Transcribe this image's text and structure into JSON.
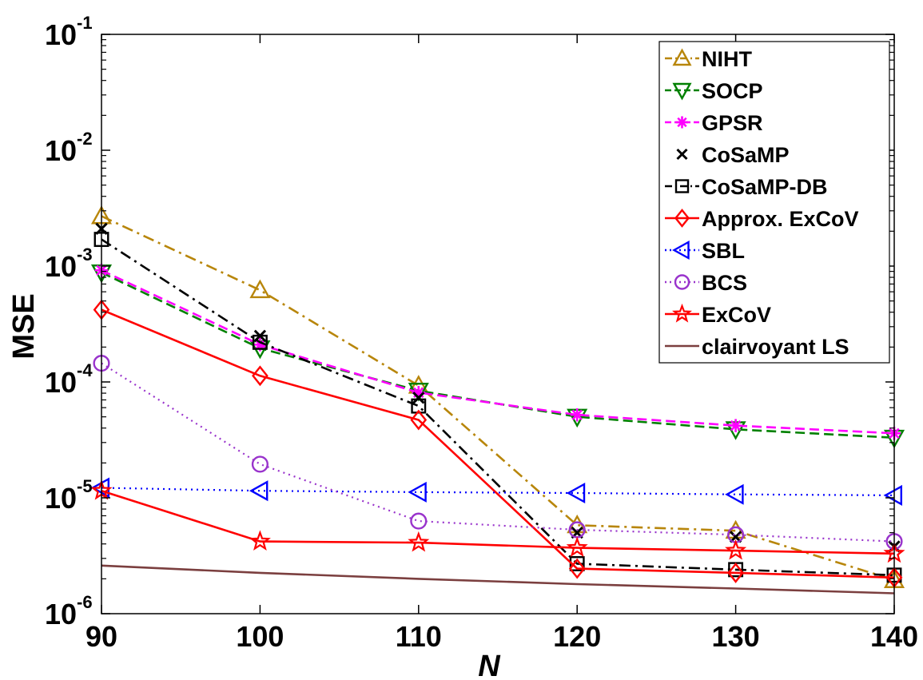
{
  "chart_data": {
    "type": "line",
    "title": "",
    "xlabel": "N",
    "ylabel": "MSE",
    "x": [
      90,
      100,
      110,
      120,
      130,
      140
    ],
    "xlim": [
      90,
      140
    ],
    "x_ticks": [
      90,
      100,
      110,
      120,
      130,
      140
    ],
    "y_scale": "log",
    "ylim": [
      1e-06,
      0.1
    ],
    "y_ticks": [
      {
        "base": "10",
        "exp": "-6",
        "value": 1e-06
      },
      {
        "base": "10",
        "exp": "-5",
        "value": 1e-05
      },
      {
        "base": "10",
        "exp": "-4",
        "value": 0.0001
      },
      {
        "base": "10",
        "exp": "-3",
        "value": 0.001
      },
      {
        "base": "10",
        "exp": "-2",
        "value": 0.01
      },
      {
        "base": "10",
        "exp": "-1",
        "value": 0.1
      }
    ],
    "grid": false,
    "legend_position": "top-right",
    "series": [
      {
        "name": "NIHT",
        "color": "#b8860b",
        "dash": "dashdot",
        "marker": "triangle-up",
        "values": [
          0.0027,
          0.00062,
          9.3e-05,
          5.8e-06,
          5.2e-06,
          1.95e-06
        ]
      },
      {
        "name": "SOCP",
        "color": "#008000",
        "dash": "dashed",
        "marker": "triangle-down",
        "values": [
          0.00088,
          0.000195,
          8.4e-05,
          5e-05,
          3.9e-05,
          3.3e-05
        ]
      },
      {
        "name": "GPSR",
        "color": "#ff00ff",
        "dash": "dashed",
        "marker": "asterisk",
        "values": [
          0.00092,
          0.00021,
          8.1e-05,
          5.2e-05,
          4.2e-05,
          3.6e-05
        ]
      },
      {
        "name": "CoSaMP",
        "color": "#000000",
        "dash": "none",
        "marker": "x",
        "values": [
          0.0021,
          0.00025,
          7.3e-05,
          5e-06,
          4.6e-06,
          3.8e-06
        ]
      },
      {
        "name": "CoSaMP-DB",
        "color": "#000000",
        "dash": "dashdot",
        "marker": "square",
        "values": [
          0.0017,
          0.00022,
          6.2e-05,
          2.7e-06,
          2.4e-06,
          2.15e-06
        ]
      },
      {
        "name": "Approx. ExCoV",
        "color": "#ff0000",
        "dash": "solid",
        "marker": "diamond",
        "values": [
          0.00042,
          0.000113,
          4.7e-05,
          2.45e-06,
          2.25e-06,
          2.05e-06
        ]
      },
      {
        "name": "SBL",
        "color": "#0000ff",
        "dash": "dotted",
        "marker": "triangle-left",
        "values": [
          1.22e-05,
          1.15e-05,
          1.12e-05,
          1.1e-05,
          1.07e-05,
          1.05e-05
        ]
      },
      {
        "name": "BCS",
        "color": "#9933cc",
        "dash": "dotted",
        "marker": "circle",
        "values": [
          0.000145,
          1.95e-05,
          6.3e-06,
          5.3e-06,
          4.8e-06,
          4.2e-06
        ]
      },
      {
        "name": "ExCoV",
        "color": "#ff0000",
        "dash": "solid",
        "marker": "star",
        "values": [
          1.15e-05,
          4.2e-06,
          4.1e-06,
          3.7e-06,
          3.5e-06,
          3.3e-06
        ]
      },
      {
        "name": "clairvoyant LS",
        "color": "#7b3f3f",
        "dash": "solid",
        "marker": "none",
        "values": [
          2.6e-06,
          2.25e-06,
          2e-06,
          1.8e-06,
          1.65e-06,
          1.5e-06
        ]
      }
    ]
  }
}
